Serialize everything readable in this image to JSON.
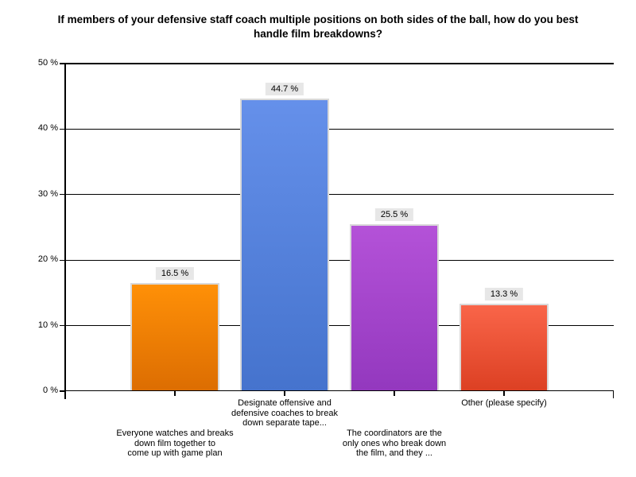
{
  "chart_data": {
    "type": "bar",
    "title": "If members of your defensive staff coach multiple positions on both sides of the ball, how do you best handle film breakdowns?",
    "categories": [
      "Everyone watches and breaks\ndown film together to\ncome up with game plan",
      "Designate offensive and\ndefensive coaches to break\ndown separate tape...",
      "The coordinators are the\nonly ones who break down\nthe film, and they ...",
      "Other (please specify)"
    ],
    "category_slugs": [
      "everyone-watches",
      "designate-coaches",
      "coordinators-only",
      "other"
    ],
    "category_label_rows": [
      "lower",
      "upper",
      "lower",
      "upper"
    ],
    "values": [
      16.5,
      44.7,
      25.5,
      13.3
    ],
    "value_labels": [
      "16.5 %",
      "44.7 %",
      "25.5 %",
      "13.3 %"
    ],
    "xlabel": "",
    "ylabel": "",
    "ylim": [
      0,
      50
    ],
    "ytick_values": [
      0,
      10,
      20,
      30,
      40,
      50
    ],
    "ytick_labels": [
      "0 %",
      "10 %",
      "20 %",
      "30 %",
      "40 %",
      "50 %"
    ],
    "grid": "horizontal-major",
    "legend_position": "none",
    "colors": {
      "background": "#ffffff",
      "axis": "#000000",
      "text": "#000000",
      "bar_border": "#d9d9d9",
      "value_label_bg": "#e7e7e7",
      "bar_gradients": [
        {
          "top": "#ff9007",
          "bottom": "#dc6d02"
        },
        {
          "top": "#6590ea",
          "bottom": "#4573cd"
        },
        {
          "top": "#b452d8",
          "bottom": "#9338be"
        },
        {
          "top": "#f96549",
          "bottom": "#dc4023"
        }
      ]
    }
  }
}
